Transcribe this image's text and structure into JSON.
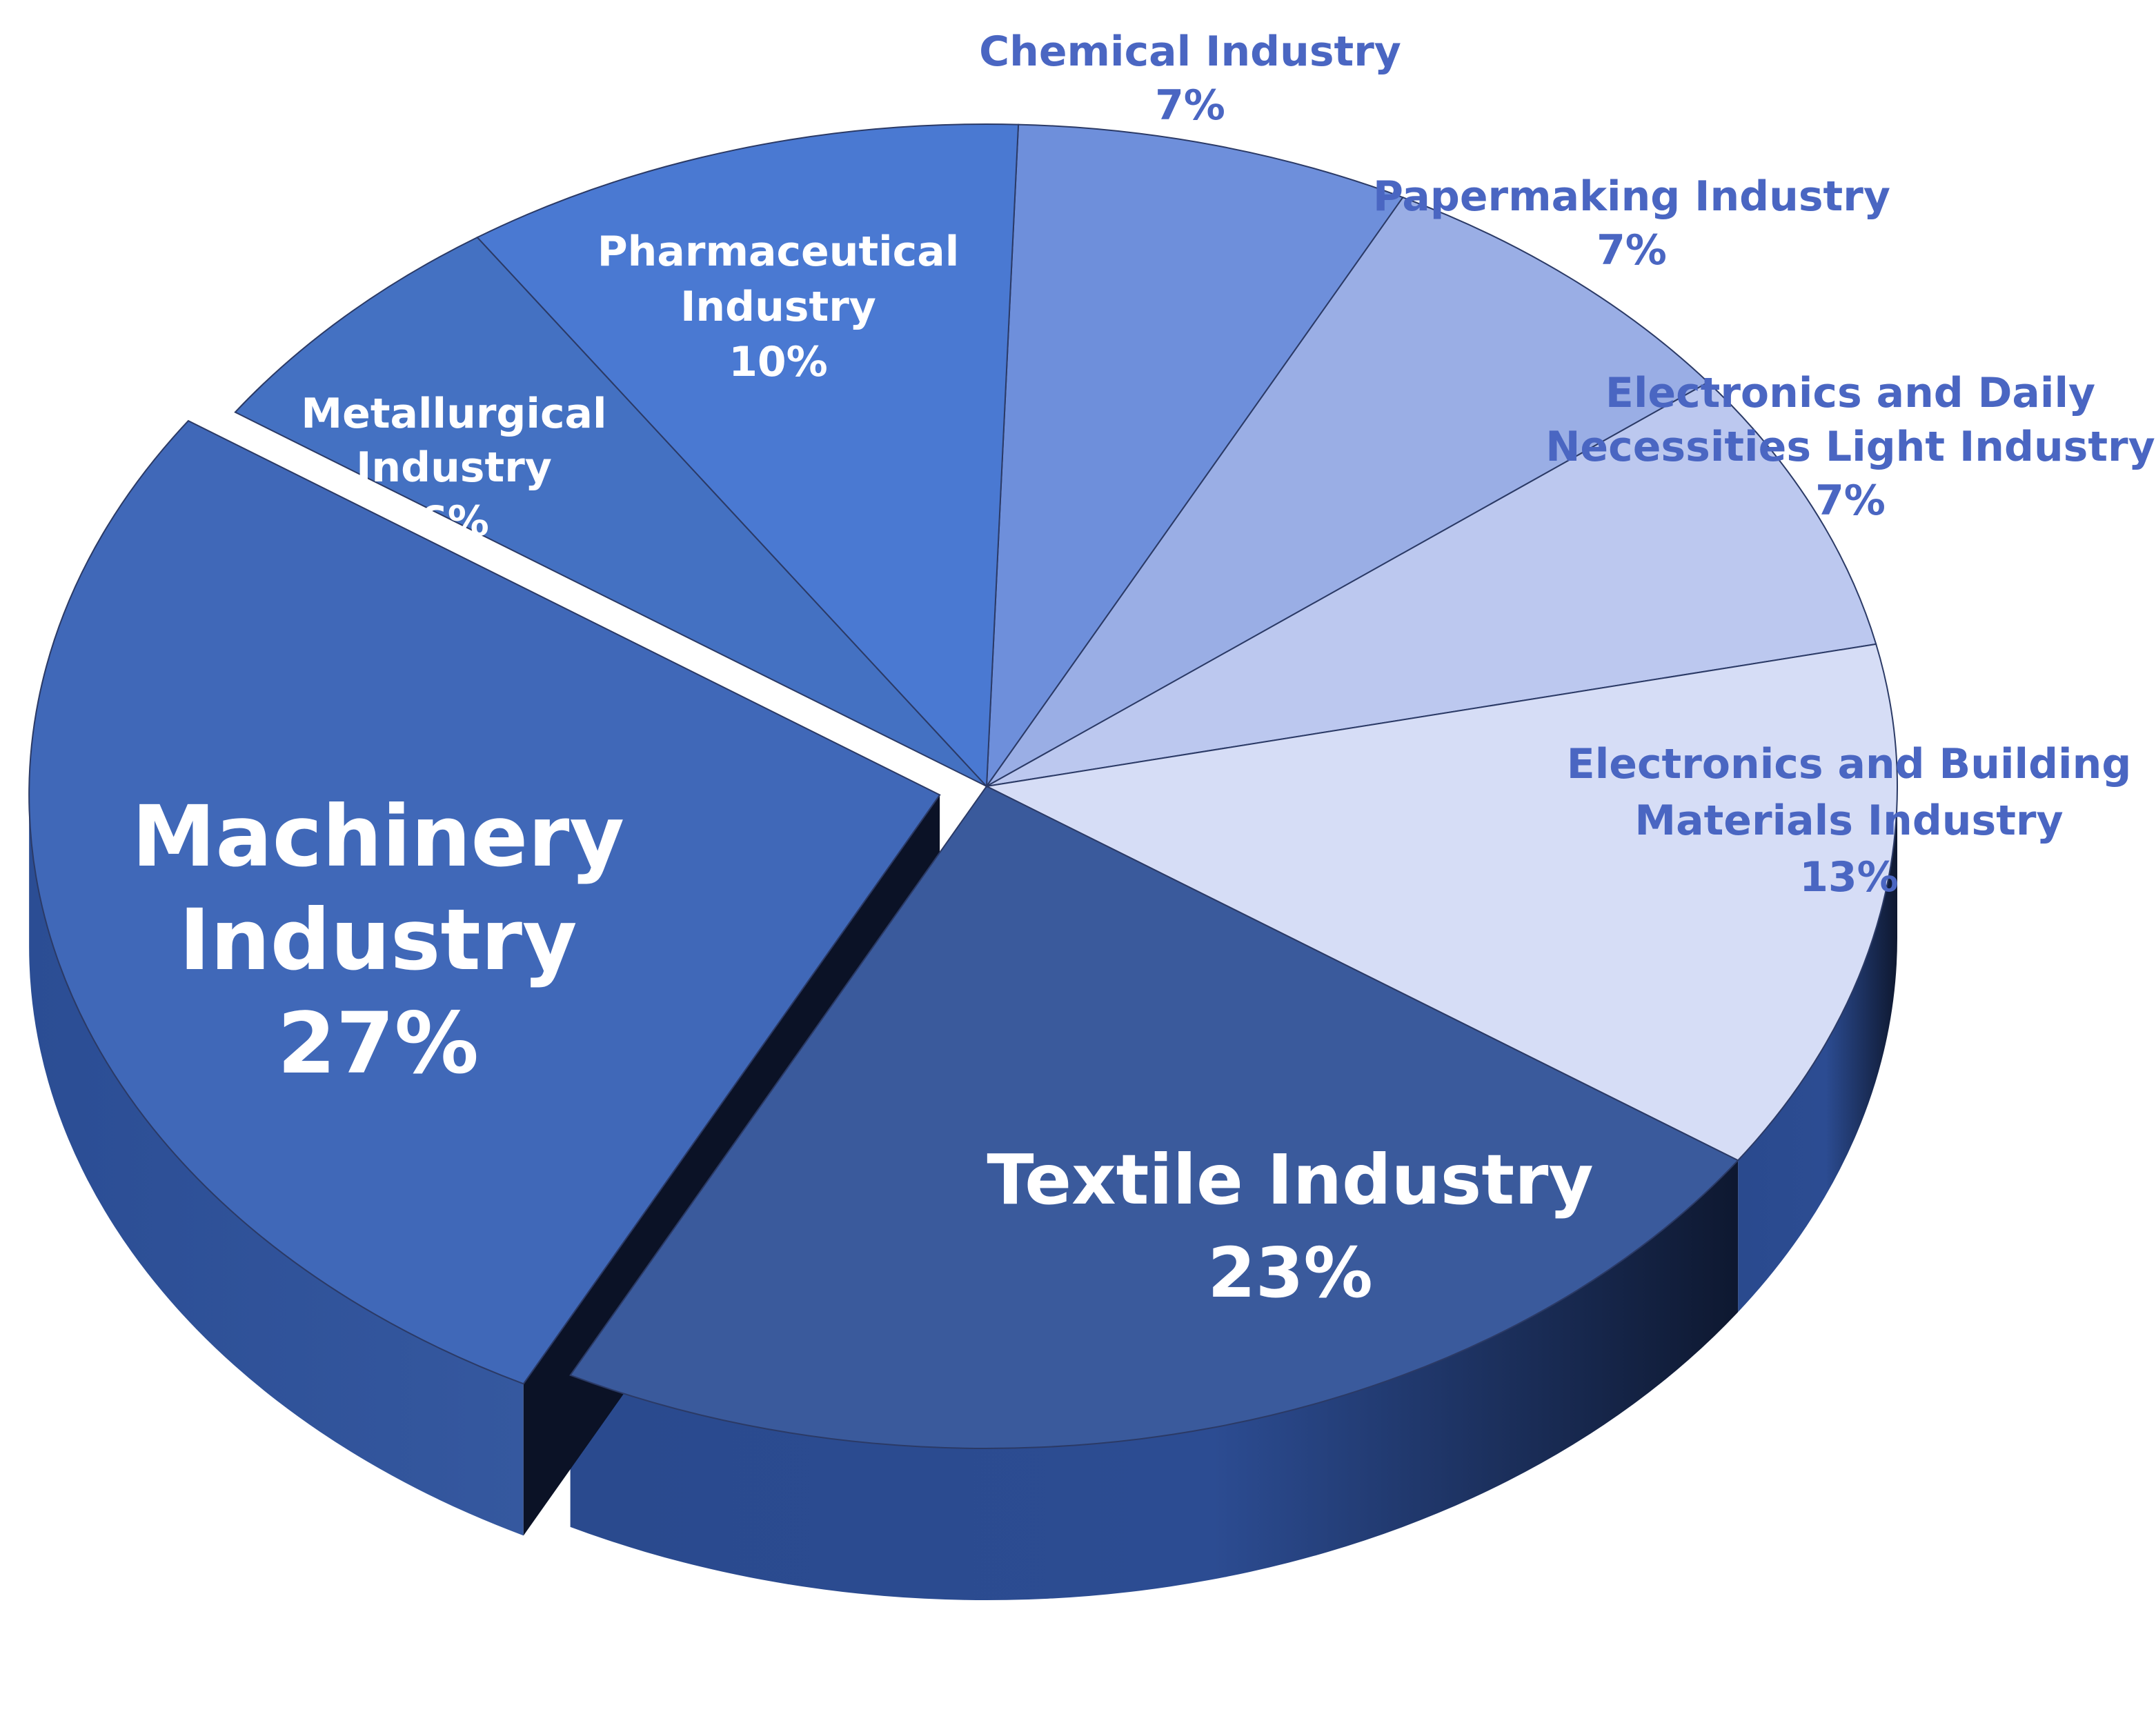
{
  "chart_data": {
    "type": "pie",
    "title": "",
    "slices": [
      {
        "lines": [
          "Chemical Industry"
        ],
        "value": 7,
        "value_label": "7%",
        "color": "#6e8fdb",
        "label_color": "#4a66c2"
      },
      {
        "lines": [
          "Papermaking Industry"
        ],
        "value": 7,
        "value_label": "7%",
        "color": "#9aaee5",
        "label_color": "#4a66c2"
      },
      {
        "lines": [
          "Electronics and Daily",
          "Necessities Light Industry"
        ],
        "value": 7,
        "value_label": "7%",
        "color": "#bcc8ef",
        "label_color": "#4a66c2"
      },
      {
        "lines": [
          "Electronics and Building",
          "Materials Industry"
        ],
        "value": 13,
        "value_label": "13%",
        "color": "#d6ddf6",
        "label_color": "#4a66c2"
      },
      {
        "lines": [
          "Textile Industry"
        ],
        "value": 23,
        "value_label": "23%",
        "color": "#3a5a9c",
        "label_color": "#ffffff"
      },
      {
        "lines": [
          "Machinery",
          "Industry"
        ],
        "value": 27,
        "value_label": "27%",
        "color": "#4068b8",
        "label_color": "#ffffff",
        "exploded": true
      },
      {
        "lines": [
          "Metallurgical",
          "Industry"
        ],
        "value": 6,
        "value_label": "6%",
        "color": "#4471c2",
        "label_color": "#ffffff"
      },
      {
        "lines": [
          "Pharmaceutical",
          "Industry"
        ],
        "value": 10,
        "value_label": "10%",
        "color": "#4a79d2",
        "label_color": "#ffffff"
      }
    ]
  }
}
